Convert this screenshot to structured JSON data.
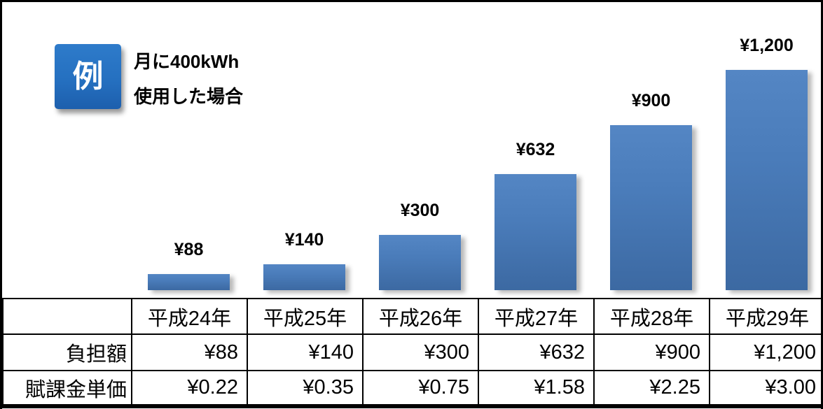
{
  "badge": {
    "label": "例"
  },
  "note": {
    "line1": "月に400kWh",
    "line2": "使用した場合"
  },
  "chart_data": {
    "type": "bar",
    "title": "",
    "categories": [
      "平成24年",
      "平成25年",
      "平成26年",
      "平成27年",
      "平成28年",
      "平成29年"
    ],
    "series": [
      {
        "name": "負担額",
        "values": [
          88,
          140,
          300,
          632,
          900,
          1200
        ]
      },
      {
        "name": "賦課金単価",
        "values": [
          0.22,
          0.35,
          0.75,
          1.58,
          2.25,
          3.0
        ]
      }
    ],
    "bar_series_plotted": "負担額",
    "bar_labels": [
      "¥88",
      "¥140",
      "¥300",
      "¥632",
      "¥900",
      "¥1,200"
    ],
    "xlabel": "",
    "ylabel": "",
    "ylim": [
      0,
      1260
    ],
    "grid": false,
    "legend_position": "none",
    "data_table_shown": true,
    "bar_color_top": "#5486c4",
    "bar_color_bottom": "#3c69a2"
  },
  "table": {
    "corner": "",
    "columns": [
      "平成24年",
      "平成25年",
      "平成26年",
      "平成27年",
      "平成28年",
      "平成29年"
    ],
    "rows": [
      {
        "label": "負担額",
        "values": [
          "¥88",
          "¥140",
          "¥300",
          "¥632",
          "¥900",
          "¥1,200"
        ]
      },
      {
        "label": "賦課金単価",
        "values": [
          "¥0.22",
          "¥0.35",
          "¥0.75",
          "¥1.58",
          "¥2.25",
          "¥3.00"
        ]
      }
    ]
  },
  "colors": {
    "badge_top": "#2e7bca",
    "badge_bottom": "#1d5fad",
    "border": "#000000",
    "background": "#ffffff"
  }
}
